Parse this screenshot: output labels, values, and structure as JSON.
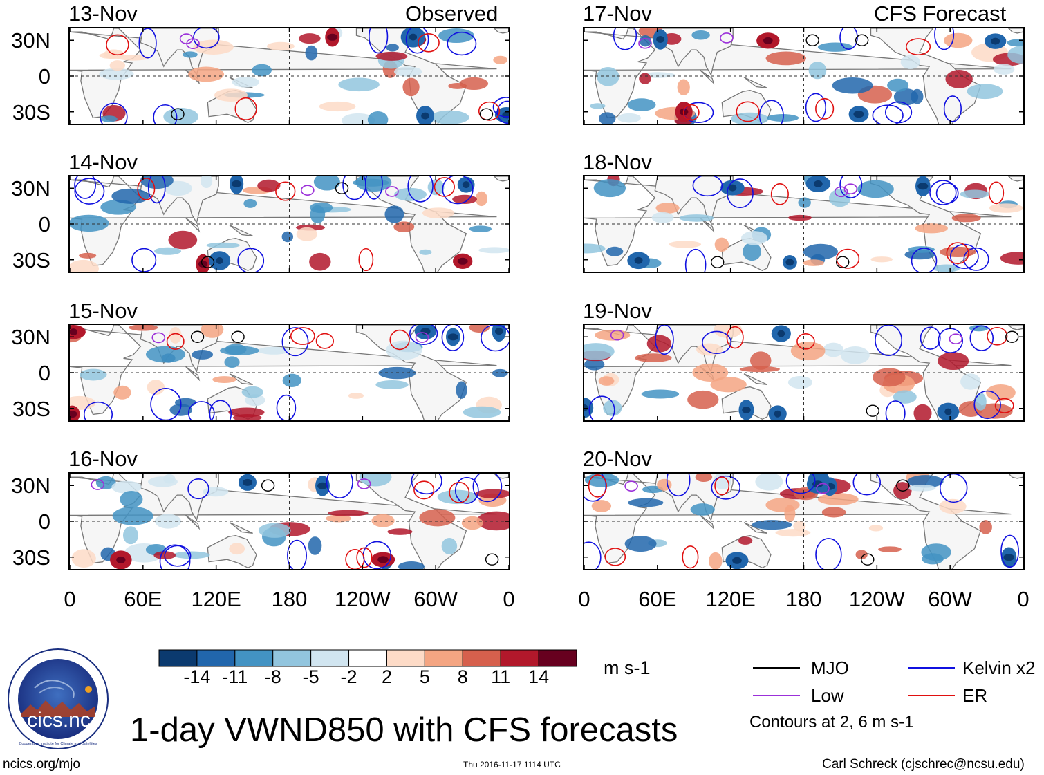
{
  "title": "1-day VWND850 with CFS forecasts",
  "website": "ncics.org/mjo",
  "timestamp": "Thu 2016-11-17 1114 UTC",
  "author": "Carl Schreck (cjschrec@ncsu.edu)",
  "logo": {
    "text": "cics.nc",
    "ring_text": "Cooperative Institute for Climate and Satellites"
  },
  "observed_label": "Observed",
  "forecast_label": "CFS Forecast",
  "chart_data": [
    {
      "type": "heatmap",
      "panel": "13-Nov",
      "source": "Observed",
      "column": "left"
    },
    {
      "type": "heatmap",
      "panel": "14-Nov",
      "source": "Observed",
      "column": "left"
    },
    {
      "type": "heatmap",
      "panel": "15-Nov",
      "source": "Observed",
      "column": "left"
    },
    {
      "type": "heatmap",
      "panel": "16-Nov",
      "source": "Observed",
      "column": "left"
    },
    {
      "type": "heatmap",
      "panel": "17-Nov",
      "source": "CFS Forecast",
      "column": "right"
    },
    {
      "type": "heatmap",
      "panel": "18-Nov",
      "source": "CFS Forecast",
      "column": "right"
    },
    {
      "type": "heatmap",
      "panel": "19-Nov",
      "source": "CFS Forecast",
      "column": "right"
    },
    {
      "type": "heatmap",
      "panel": "20-Nov",
      "source": "CFS Forecast",
      "column": "right"
    }
  ],
  "axes": {
    "lat_ticks": [
      "30N",
      "0",
      "30S"
    ],
    "lat_values": [
      30,
      0,
      -30
    ],
    "lon_ticks": [
      "0",
      "60E",
      "120E",
      "180",
      "120W",
      "60W",
      "0"
    ],
    "lon_values": [
      0,
      60,
      120,
      180,
      240,
      300,
      360
    ],
    "lat_range": [
      -40,
      40
    ],
    "lon_range": [
      0,
      360
    ]
  },
  "colorbar": {
    "unit": "m s-1",
    "labels": [
      "-14",
      "-11",
      "-8",
      "-5",
      "-2",
      "2",
      "5",
      "8",
      "11",
      "14"
    ],
    "colors": [
      "#0b3a6f",
      "#2166ac",
      "#4393c3",
      "#92c5de",
      "#d1e5f0",
      "#ffffff",
      "#fddbc7",
      "#f4a582",
      "#d6604d",
      "#b2182b",
      "#67001f"
    ]
  },
  "legend": {
    "items": [
      {
        "label": "MJO",
        "color": "#000000"
      },
      {
        "label": "Kelvin x2",
        "color": "#1010e0"
      },
      {
        "label": "Low",
        "color": "#9b30d9"
      },
      {
        "label": "ER",
        "color": "#e01010"
      }
    ],
    "note": "Contours at 2, 6 m s-1"
  }
}
